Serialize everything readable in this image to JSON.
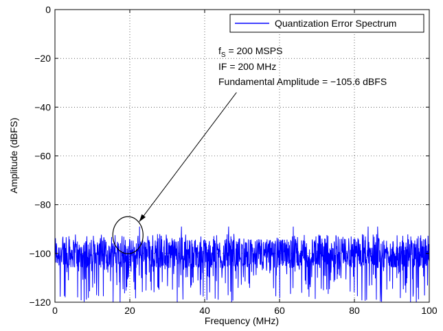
{
  "chart_data": {
    "type": "line",
    "xlabel": "Frequency (MHz)",
    "ylabel": "Amplitude (dBFS)",
    "xlim": [
      0,
      100
    ],
    "ylim": [
      -120,
      0
    ],
    "xticks": [
      0,
      20,
      40,
      60,
      80,
      100
    ],
    "yticks": [
      0,
      -20,
      -40,
      -60,
      -80,
      -100,
      -120
    ],
    "grid": true,
    "legend_position": "top-right",
    "series": [
      {
        "name": "Quantization Error Spectrum",
        "color": "#0000ff",
        "description": "noise floor spectrum",
        "mean_level": -100,
        "typical_peak": -92,
        "max_level": -89,
        "min_level": -120
      }
    ],
    "annotations": {
      "line1_main": "f",
      "line1_sub": "S",
      "line1_rest": " = 200 MSPS",
      "line2": "IF = 200 MHz",
      "line3": "Fundamental Amplitude = −105.6 dBFS",
      "circle_center": [
        19.5,
        -92.5
      ],
      "arrow_from": [
        48.5,
        -34
      ],
      "arrow_to": [
        22.5,
        -87
      ]
    }
  }
}
